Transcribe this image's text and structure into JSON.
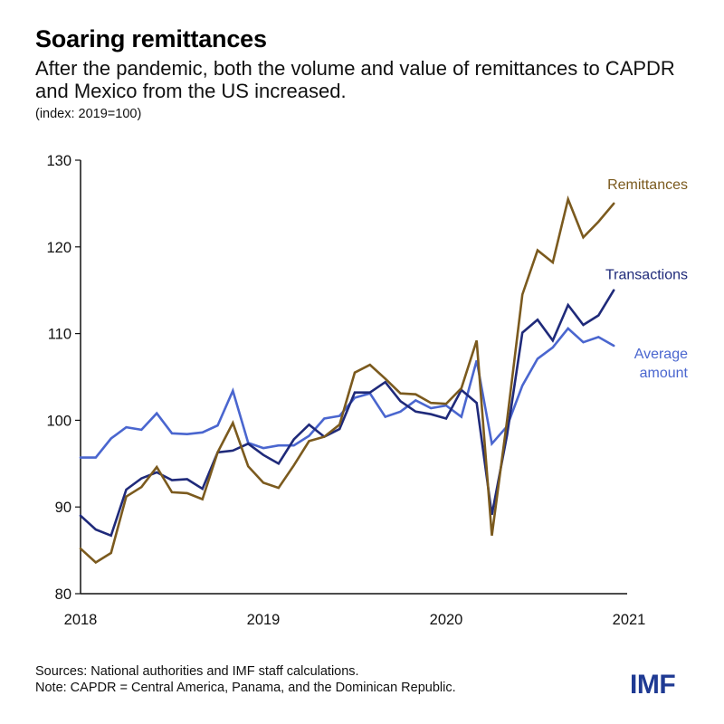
{
  "header": {
    "title": "Soaring remittances",
    "subtitle": "After the pandemic, both the volume and value of remittances to CAPDR and Mexico from the US increased.",
    "unit_note": "(index: 2019=100)"
  },
  "footer": {
    "sources": "Sources: National authorities and IMF staff calculations.",
    "note": "Note: CAPDR = Central America, Panama, and the Dominican Republic.",
    "logo": "IMF"
  },
  "chart_data": {
    "type": "line",
    "title": "Soaring remittances",
    "subtitle": "After the pandemic, both the volume and value of remittances to CAPDR and Mexico from the US increased.",
    "xlabel": "",
    "ylabel": "(index: 2019=100)",
    "x_start": "2018-01",
    "x_end": "2020-12",
    "frequency": "monthly",
    "xlim": [
      2018,
      2021
    ],
    "ylim": [
      80,
      130
    ],
    "x_ticks": [
      "2018",
      "2019",
      "2020",
      "2021"
    ],
    "y_ticks": [
      "80",
      "90",
      "100",
      "110",
      "120",
      "130"
    ],
    "grid": false,
    "legend": "inline labels at right end of lines",
    "series": [
      {
        "name": "Remittances",
        "color": "#7b5a1e",
        "values": [
          85.2,
          83.6,
          84.7,
          91.2,
          92.3,
          94.6,
          91.7,
          91.6,
          90.9,
          96.3,
          99.7,
          94.7,
          92.8,
          92.2,
          94.8,
          97.6,
          98.1,
          99.5,
          105.5,
          106.4,
          104.8,
          103.1,
          103.0,
          102.0,
          101.9,
          103.7,
          109.2,
          86.7,
          100.0,
          114.5,
          119.6,
          118.2,
          125.5,
          121.1,
          122.9,
          125.0
        ]
      },
      {
        "name": "Transactions",
        "color": "#1f2a7a",
        "values": [
          89.0,
          87.4,
          86.7,
          92.0,
          93.3,
          94.0,
          93.1,
          93.2,
          92.1,
          96.3,
          96.5,
          97.3,
          96.0,
          95.0,
          97.8,
          99.5,
          98.1,
          99.0,
          103.2,
          103.2,
          104.4,
          102.2,
          101.0,
          100.7,
          100.2,
          103.5,
          102.0,
          89.1,
          98.3,
          110.1,
          111.6,
          109.2,
          113.3,
          111.0,
          112.1,
          115.0
        ]
      },
      {
        "name": "Average amount",
        "color": "#4a66cf",
        "values": [
          95.7,
          95.7,
          97.9,
          99.2,
          98.9,
          100.8,
          98.5,
          98.4,
          98.6,
          99.4,
          103.4,
          97.4,
          96.8,
          97.1,
          97.1,
          98.2,
          100.2,
          100.5,
          102.6,
          103.1,
          100.4,
          101.0,
          102.3,
          101.4,
          101.7,
          100.4,
          106.9,
          97.3,
          99.3,
          104.0,
          107.1,
          108.4,
          110.6,
          109.0,
          109.6,
          108.6
        ]
      }
    ],
    "series_labels": [
      {
        "series": "Remittances",
        "lines": [
          "Remittances"
        ]
      },
      {
        "series": "Transactions",
        "lines": [
          "Transactions"
        ]
      },
      {
        "series": "Average amount",
        "lines": [
          "Average",
          "amount"
        ]
      }
    ]
  }
}
